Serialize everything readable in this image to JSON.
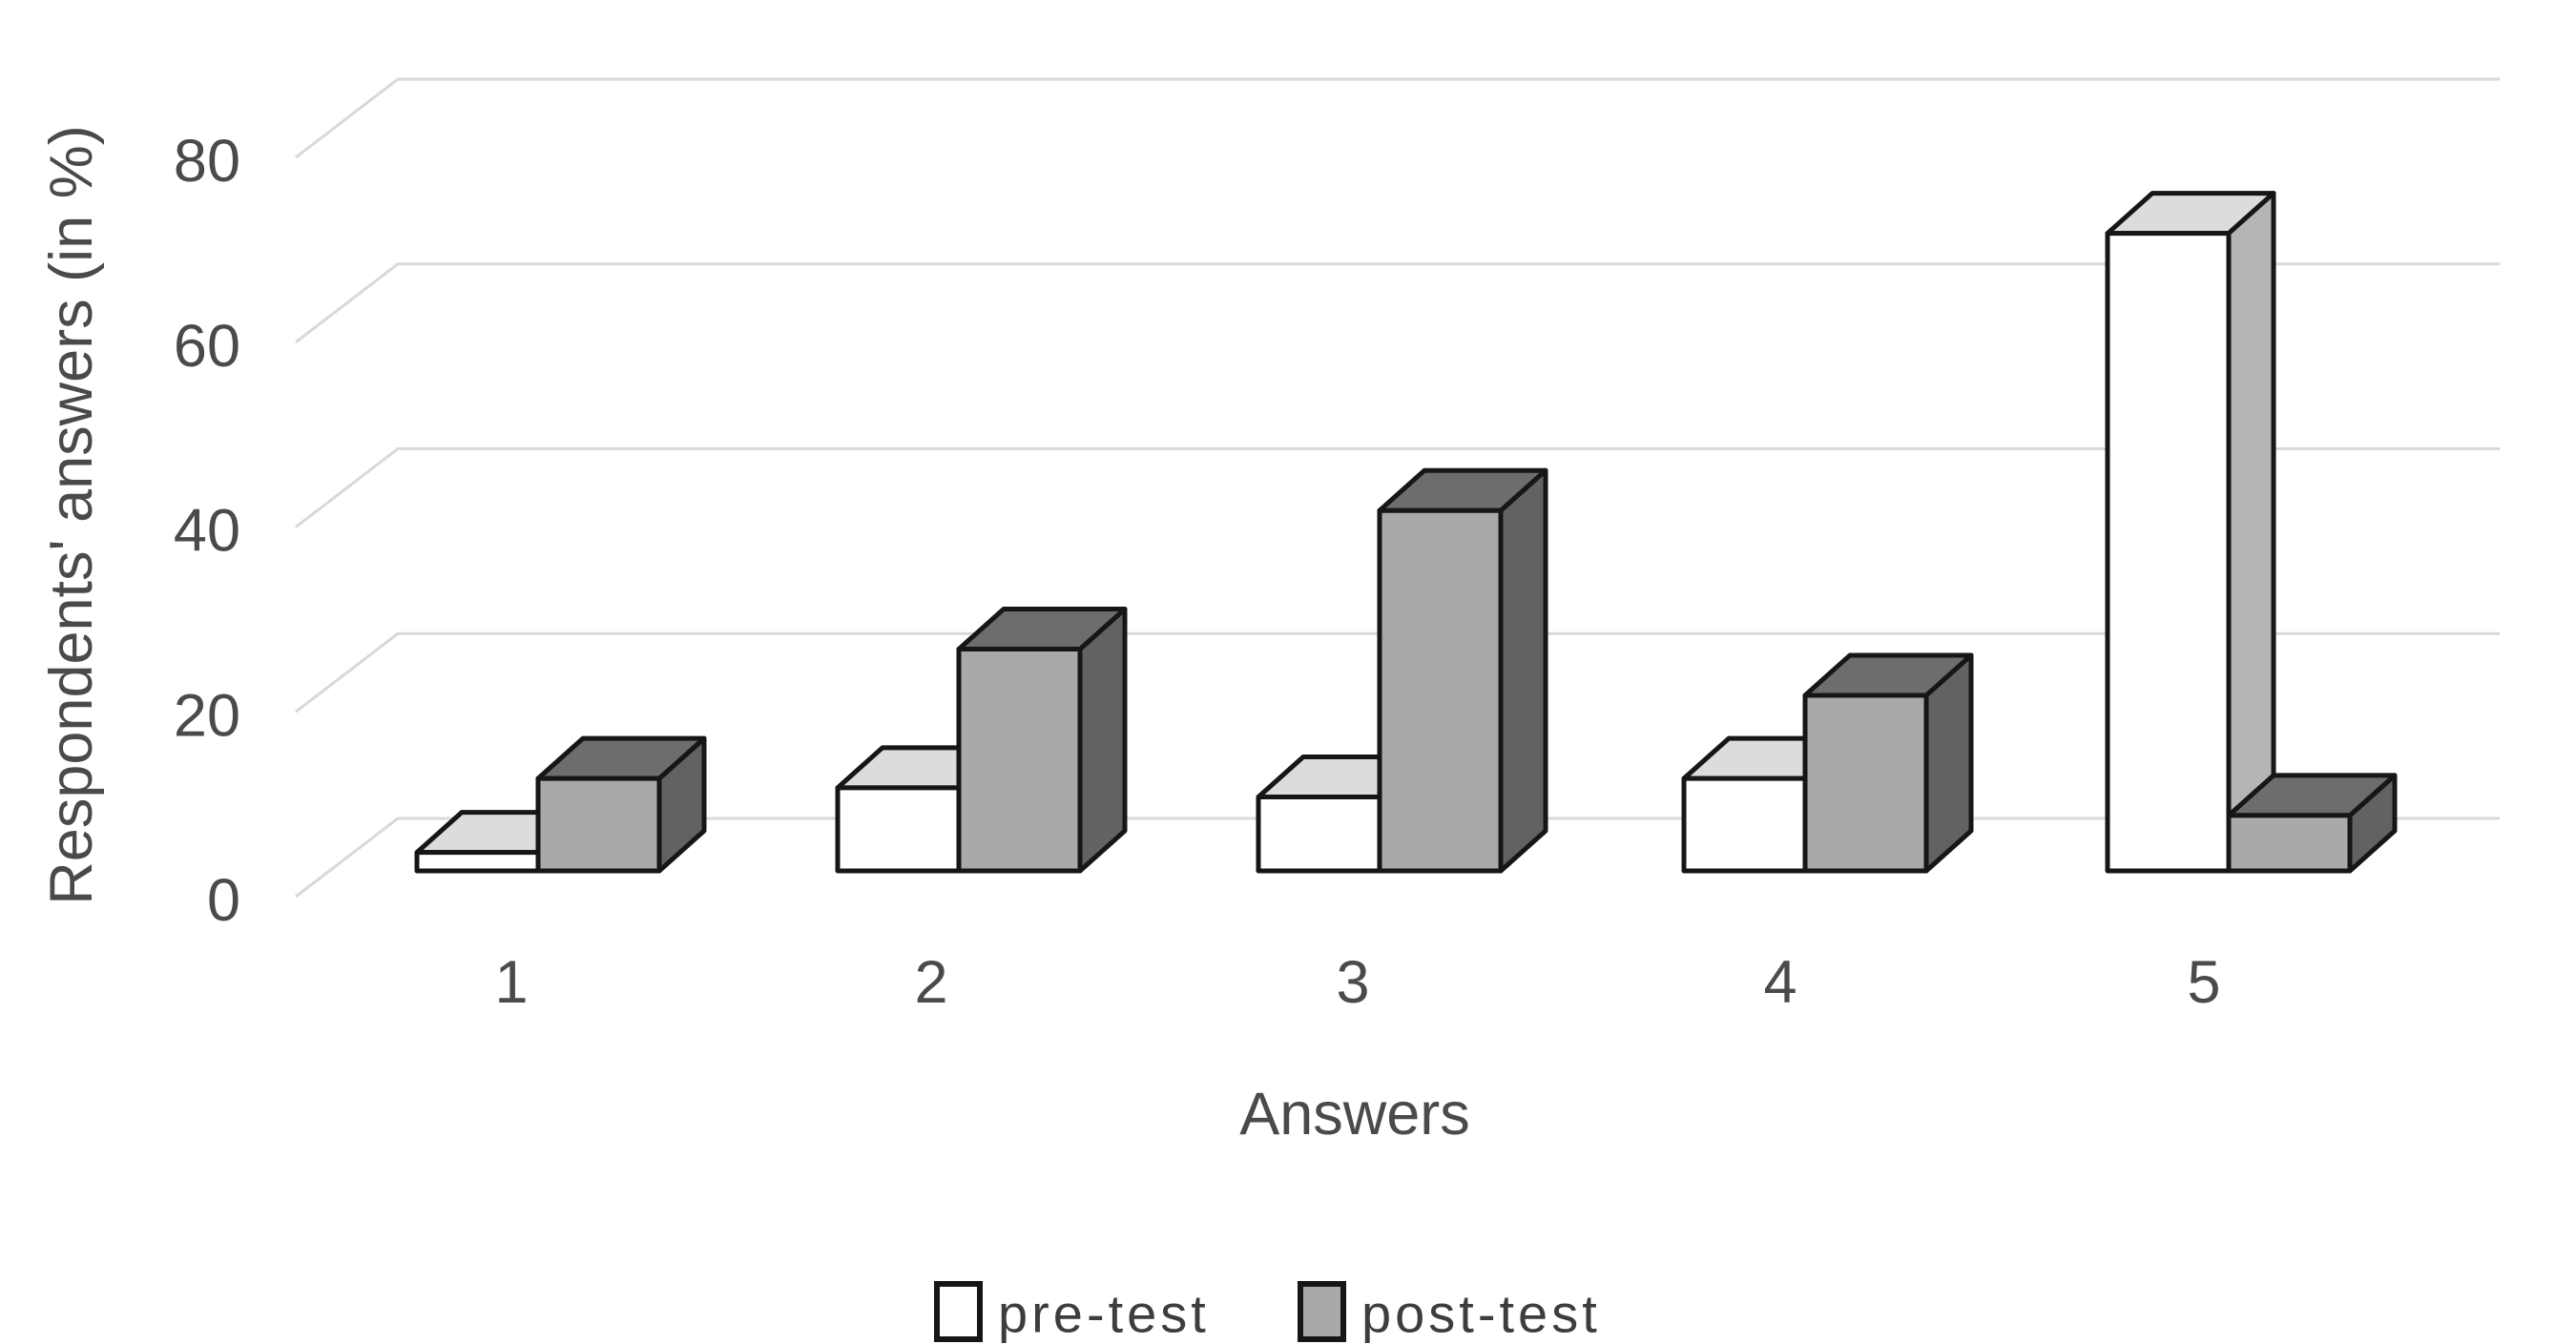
{
  "chart_data": {
    "type": "bar",
    "variant": "3d-clustered-column",
    "title": "",
    "categories": [
      "1",
      "2",
      "3",
      "4",
      "5"
    ],
    "series": [
      {
        "name": "pre-test",
        "values": [
          2,
          9,
          8,
          10,
          69
        ],
        "color": "#ffffff"
      },
      {
        "name": "post-test",
        "values": [
          10,
          24,
          39,
          19,
          6
        ],
        "color": "#a9a9a9"
      }
    ],
    "xlabel": "Answers",
    "ylabel": "Respondents' answers (in %)",
    "yticks": [
      0,
      20,
      40,
      60,
      80
    ],
    "ylim": [
      0,
      90
    ],
    "grid": true,
    "legend_position": "bottom",
    "colors": {
      "gridline": "#d9d9d9",
      "bar_outline": "#161616",
      "pre_top": "#dcdcdc",
      "pre_side": "#b5b5b5",
      "post_top": "#6d6d6d",
      "post_side": "#626262",
      "text": "#4a4a4a"
    }
  }
}
